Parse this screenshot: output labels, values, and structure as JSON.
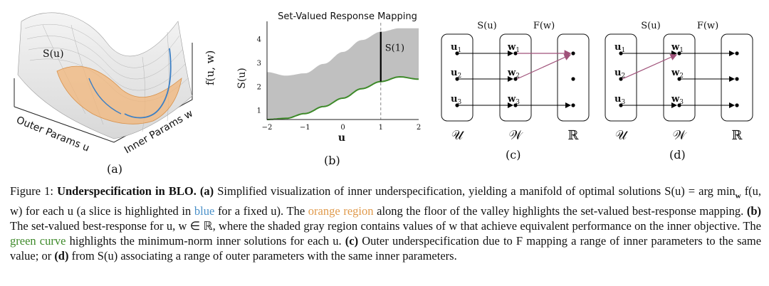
{
  "panel_a": {
    "surface_label": "S(u)",
    "fx_label": "f(u, w)",
    "outer_label": "Outer Params u",
    "inner_label": "Inner Params w",
    "sub": "(a)"
  },
  "panel_b": {
    "sub": "(b)",
    "s1_label": "S(1)"
  },
  "panel_c": {
    "top_s": "S(u)",
    "top_f": "F(w)",
    "u1": "u",
    "u2": "u",
    "u3": "u",
    "w1": "w",
    "w2": "w",
    "w3": "w",
    "idx1": "1",
    "idx2": "2",
    "idx3": "3",
    "set_u": "𝒰",
    "set_w": "𝒲",
    "set_r": "ℝ",
    "sub": "(c)"
  },
  "panel_d": {
    "top_s": "S(u)",
    "top_f": "F(w)",
    "set_u": "𝒰",
    "set_w": "𝒲",
    "set_r": "ℝ",
    "sub": "(d)"
  },
  "caption": {
    "fig": "Figure 1:",
    "title": "Underspecification in BLO.",
    "a_tag": "(a)",
    "t1": "Simplified visualization of inner underspecification, yielding a manifold of optimal solutions",
    "t2a": "S(u) = arg min",
    "t2sub": "w",
    "t2b": "f(u, w) for each u (a slice is highlighted in",
    "blue": "blue",
    "t2c": "for a fixed u). The",
    "orange": "orange region",
    "t2d": "along the floor of the valley",
    "t3a": "highlights the set-valued best-response mapping.",
    "b_tag": "(b)",
    "t3b": "The set-valued best-response for u, w ∈ ℝ, where the shaded gray region contains",
    "t4a": "values of w that achieve equivalent performance on the inner objective. The",
    "green": "green curve",
    "t4b": "highlights the minimum-norm inner solutions for",
    "t5a": "each u.",
    "c_tag": "(c)",
    "t5b": "Outer underspecification due to F mapping a range of inner parameters to the same value; or",
    "d_tag": "(d)",
    "t5c": "from S(u) associating a",
    "t6": "range of outer parameters with the same inner parameters."
  },
  "chart_data": {
    "type": "area",
    "title": "Set-Valued Response Mapping",
    "xlabel": "u",
    "ylabel": "S(u)",
    "xlim": [
      -2,
      2
    ],
    "ylim": [
      0.6,
      4.5
    ],
    "xticks": [
      "−2",
      "−1",
      "0",
      "1",
      "2"
    ],
    "yticks": [
      "1",
      "2",
      "3",
      "4"
    ],
    "x": [
      -2.0,
      -1.5,
      -1.0,
      -0.5,
      0.0,
      0.5,
      1.0,
      1.5,
      2.0
    ],
    "upper": [
      2.6,
      2.45,
      2.55,
      2.95,
      3.45,
      3.95,
      4.3,
      4.45,
      4.45
    ],
    "lower": [
      0.6,
      0.65,
      0.85,
      1.15,
      1.5,
      1.9,
      2.2,
      2.4,
      2.3
    ],
    "marker_x": 1,
    "colors": {
      "fill": "#c0c0c0",
      "lower": "#3e8a2a",
      "marker": "#000000",
      "dashed": "#888888"
    }
  }
}
